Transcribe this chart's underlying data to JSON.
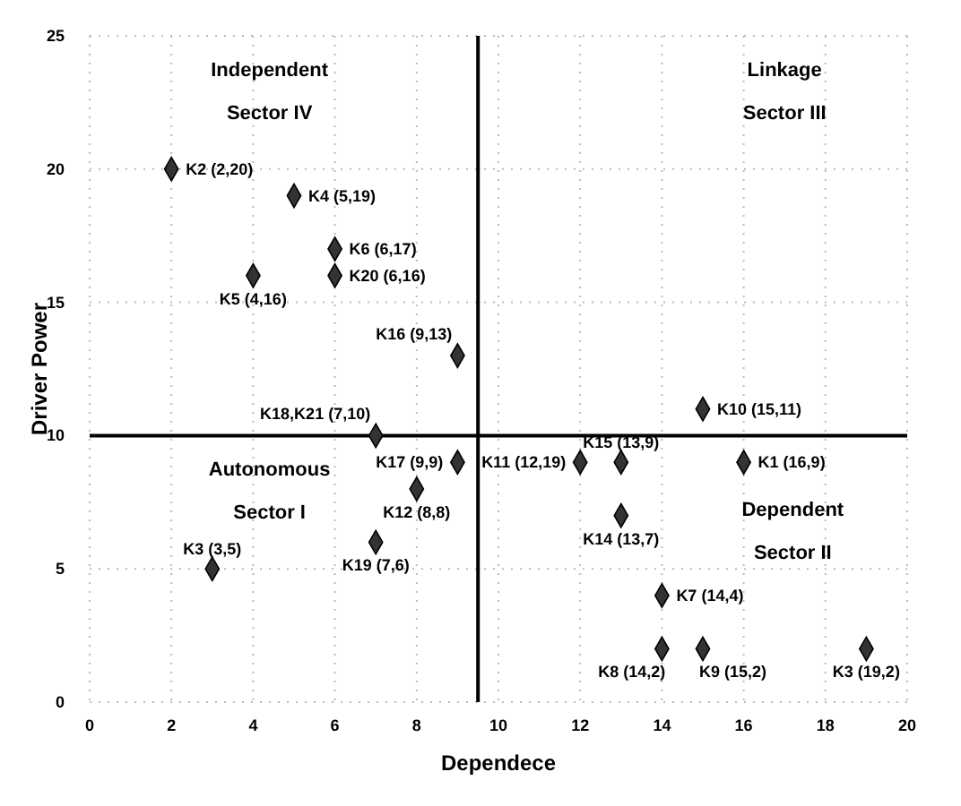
{
  "chart_data": {
    "type": "scatter",
    "xlabel": "Dependece",
    "ylabel": "Driver Power",
    "xlim": [
      0,
      20
    ],
    "xticks": [
      0,
      2,
      4,
      6,
      8,
      10,
      12,
      14,
      16,
      18,
      20
    ],
    "ylim": [
      0,
      25
    ],
    "yticks": [
      0,
      5,
      10,
      15,
      20,
      25
    ],
    "grid": true,
    "marker": "diamond",
    "series": [
      {
        "color": "#333333",
        "x": [
          2,
          5,
          6,
          6,
          4,
          9,
          7,
          9,
          8,
          7,
          3,
          15,
          12,
          13,
          16,
          13,
          14,
          14,
          15,
          19
        ],
        "values": [
          20,
          19,
          17,
          16,
          16,
          13,
          10,
          9,
          8,
          6,
          5,
          11,
          9,
          9,
          9,
          7,
          4,
          2,
          2,
          2
        ]
      }
    ],
    "ref_lines": [
      {
        "axis": "x",
        "value": 9.5,
        "color": "#000000"
      },
      {
        "axis": "y",
        "value": 10,
        "color": "#000000"
      }
    ],
    "annotations": [
      "Independent Sector IV",
      "Linkage Sector III",
      "Autonomous Sector I",
      "Dependent Sector II",
      {
        "text": "K2 (2,20)",
        "x": 2,
        "y": 20
      },
      {
        "text": "K4 (5,19)",
        "x": 5,
        "y": 19
      },
      {
        "text": "K6 (6,17)",
        "x": 6,
        "y": 17
      },
      {
        "text": "K20 (6,16)",
        "x": 6,
        "y": 16
      },
      {
        "text": "K5 (4,16)",
        "x": 4,
        "y": 16
      },
      {
        "text": "K16 (9,13)",
        "x": 9,
        "y": 13
      },
      {
        "text": "K18,K21 (7,10)",
        "x": 7,
        "y": 10
      },
      {
        "text": "K17 (9,9)",
        "x": 9,
        "y": 9
      },
      {
        "text": "K12 (8,8)",
        "x": 8,
        "y": 8
      },
      {
        "text": "K19 (7,6)",
        "x": 7,
        "y": 6
      },
      {
        "text": "K3 (3,5)",
        "x": 3,
        "y": 5
      },
      {
        "text": "K10 (15,11)",
        "x": 15,
        "y": 11
      },
      {
        "text": "K11 (12,19)",
        "x": 12,
        "y": 9
      },
      {
        "text": "K15 (13,9)",
        "x": 13,
        "y": 9
      },
      {
        "text": "K1 (16,9)",
        "x": 16,
        "y": 9
      },
      {
        "text": "K14 (13,7)",
        "x": 13,
        "y": 7
      },
      {
        "text": "K7 (14,4)",
        "x": 14,
        "y": 4
      },
      {
        "text": "K8 (14,2)",
        "x": 14,
        "y": 2
      },
      {
        "text": "K9 (15,2)",
        "x": 15,
        "y": 2
      },
      {
        "text": "K3 (19,2)",
        "x": 19,
        "y": 2
      }
    ]
  }
}
